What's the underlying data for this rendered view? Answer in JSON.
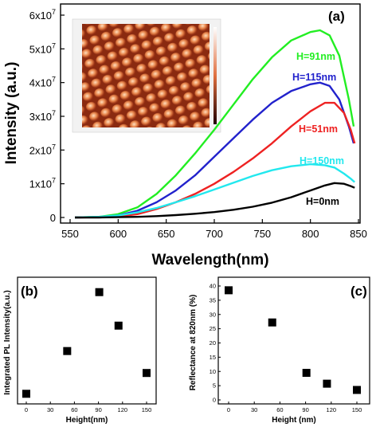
{
  "chart_data": [
    {
      "type": "line",
      "panel_label": "(a)",
      "xlabel": "Wavelength(nm)",
      "ylabel": "Intensity (a.u.)",
      "xlim": [
        550,
        850
      ],
      "ylim": [
        0,
        60000000
      ],
      "x_ticks": [
        "550",
        "600",
        "650",
        "700",
        "750",
        "800",
        "850"
      ],
      "y_ticks": [
        {
          "value": 0,
          "base": "0",
          "exp": ""
        },
        {
          "value": 10000000,
          "base": "1x10",
          "exp": "7"
        },
        {
          "value": 20000000,
          "base": "2x10",
          "exp": "7"
        },
        {
          "value": 30000000,
          "base": "3x10",
          "exp": "7"
        },
        {
          "value": 40000000,
          "base": "4x10",
          "exp": "7"
        },
        {
          "value": 50000000,
          "base": "5x10",
          "exp": "7"
        },
        {
          "value": 60000000,
          "base": "6x10",
          "exp": "7"
        }
      ],
      "grid": false,
      "inset": "AFM topography image of nanostructure array",
      "series": [
        {
          "name": "H=91nm",
          "color": "#22ee22",
          "x": [
            555,
            580,
            600,
            620,
            640,
            660,
            680,
            700,
            720,
            740,
            760,
            780,
            800,
            810,
            820,
            830,
            840,
            845
          ],
          "y": [
            0,
            200000,
            1000000,
            3000000,
            7000000,
            12500000,
            19000000,
            26000000,
            33500000,
            41000000,
            47500000,
            52500000,
            55000000,
            55500000,
            54000000,
            48000000,
            35000000,
            27000000
          ]
        },
        {
          "name": "H=115nm",
          "color": "#2222cc",
          "x": [
            555,
            580,
            600,
            620,
            640,
            660,
            680,
            700,
            720,
            740,
            760,
            780,
            800,
            810,
            820,
            830,
            840,
            845
          ],
          "y": [
            0,
            150000,
            600000,
            2000000,
            4500000,
            8000000,
            12500000,
            18000000,
            23500000,
            29000000,
            34000000,
            37500000,
            39500000,
            40000000,
            39000000,
            35000000,
            27000000,
            22000000
          ]
        },
        {
          "name": "H=51nm",
          "color": "#ee2222",
          "x": [
            555,
            580,
            600,
            620,
            640,
            660,
            680,
            700,
            720,
            740,
            760,
            780,
            800,
            815,
            825,
            835,
            842,
            846
          ],
          "y": [
            0,
            100000,
            300000,
            1000000,
            2500000,
            4500000,
            7000000,
            10000000,
            13500000,
            17500000,
            22000000,
            27000000,
            31500000,
            34000000,
            34000000,
            31000000,
            26000000,
            22000000
          ]
        },
        {
          "name": "H=150nm",
          "color": "#22e8ee",
          "x": [
            555,
            580,
            600,
            620,
            640,
            660,
            680,
            700,
            720,
            740,
            760,
            780,
            800,
            815,
            825,
            835,
            842,
            846
          ],
          "y": [
            0,
            200000,
            600000,
            1500000,
            2800000,
            4500000,
            6300000,
            8300000,
            10300000,
            12300000,
            14000000,
            15200000,
            15800000,
            15500000,
            14800000,
            13000000,
            11500000,
            10500000
          ]
        },
        {
          "name": "H=0nm",
          "color": "#000000",
          "x": [
            555,
            580,
            600,
            620,
            640,
            660,
            680,
            700,
            720,
            740,
            760,
            780,
            800,
            815,
            825,
            835,
            842,
            846
          ],
          "y": [
            0,
            0,
            100000,
            200000,
            400000,
            700000,
            1100000,
            1600000,
            2300000,
            3200000,
            4400000,
            6000000,
            8000000,
            9500000,
            10200000,
            10000000,
            9300000,
            8800000
          ]
        }
      ]
    },
    {
      "type": "scatter",
      "panel_label": "(b)",
      "xlabel": "Height(nm)",
      "ylabel": "Integrated PL Intensity(a.u.)",
      "xlim": [
        -8,
        158
      ],
      "ylim": [
        0,
        1
      ],
      "x_ticks": [
        "0",
        "30",
        "60",
        "90",
        "120",
        "150"
      ],
      "points": [
        {
          "x": 0,
          "y": 0.06
        },
        {
          "x": 51,
          "y": 0.43
        },
        {
          "x": 91,
          "y": 0.94
        },
        {
          "x": 115,
          "y": 0.65
        },
        {
          "x": 150,
          "y": 0.24
        }
      ]
    },
    {
      "type": "scatter",
      "panel_label": "(c)",
      "xlabel": "Height (nm)",
      "ylabel": "Reflectance at 820nm (%)",
      "xlim": [
        -8,
        158
      ],
      "ylim": [
        0,
        40
      ],
      "x_ticks": [
        "0",
        "30",
        "60",
        "90",
        "120",
        "150"
      ],
      "y_ticks": [
        "0",
        "5",
        "10",
        "15",
        "20",
        "25",
        "30",
        "35",
        "40"
      ],
      "points": [
        {
          "x": 0,
          "y": 38.5
        },
        {
          "x": 51,
          "y": 27.2
        },
        {
          "x": 91,
          "y": 9.5
        },
        {
          "x": 115,
          "y": 5.7
        },
        {
          "x": 150,
          "y": 3.5
        }
      ]
    }
  ]
}
